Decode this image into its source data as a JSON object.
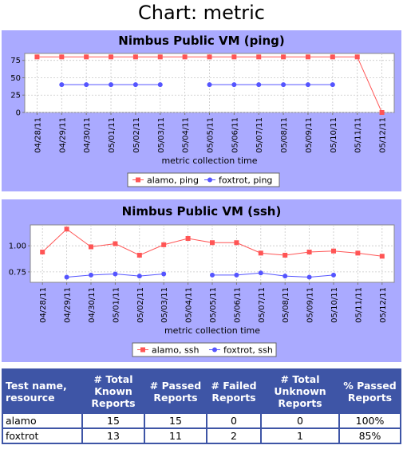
{
  "page": {
    "title": "Chart: metric"
  },
  "chart_data": [
    {
      "type": "line",
      "title": "Nimbus Public VM (ping)",
      "xlabel": "metric collection time",
      "ylabel": "",
      "categories": [
        "04/28/11",
        "04/29/11",
        "04/30/11",
        "05/01/11",
        "05/02/11",
        "05/03/11",
        "05/04/11",
        "05/05/11",
        "05/06/11",
        "05/07/11",
        "05/08/11",
        "05/09/11",
        "05/10/11",
        "05/11/11",
        "05/12/11"
      ],
      "ylim": [
        0,
        85
      ],
      "yticks": [
        0,
        25,
        50,
        75
      ],
      "ytick_labels": [
        "0",
        "25",
        "50",
        "75"
      ],
      "grid": true,
      "legend_position": "bottom",
      "series": [
        {
          "name": "alamo, ping",
          "color": "#ff5555",
          "marker": "square",
          "values": [
            80,
            80,
            80,
            80,
            80,
            80,
            80,
            80,
            80,
            80,
            80,
            80,
            80,
            80,
            0
          ]
        },
        {
          "name": "foxtrot, ping",
          "color": "#5555ff",
          "marker": "circle",
          "values": [
            null,
            40,
            40,
            40,
            40,
            40,
            null,
            40,
            40,
            40,
            40,
            40,
            40,
            null,
            null
          ]
        }
      ]
    },
    {
      "type": "line",
      "title": "Nimbus Public VM (ssh)",
      "xlabel": "metric collection time",
      "ylabel": "",
      "categories": [
        "04/28/11",
        "04/29/11",
        "04/30/11",
        "05/01/11",
        "05/02/11",
        "05/03/11",
        "05/04/11",
        "05/05/11",
        "05/06/11",
        "05/07/11",
        "05/08/11",
        "05/09/11",
        "05/10/11",
        "05/11/11",
        "05/12/11"
      ],
      "ylim": [
        0.65,
        1.2
      ],
      "yticks": [
        0.75,
        1.0
      ],
      "ytick_labels": [
        "0.75",
        "1.00"
      ],
      "grid": true,
      "legend_position": "bottom",
      "series": [
        {
          "name": "alamo, ssh",
          "color": "#ff5555",
          "marker": "square",
          "values": [
            0.94,
            1.16,
            0.99,
            1.02,
            0.91,
            1.01,
            1.07,
            1.03,
            1.03,
            0.93,
            0.91,
            0.94,
            0.95,
            0.93,
            0.9
          ]
        },
        {
          "name": "foxtrot, ssh",
          "color": "#5555ff",
          "marker": "circle",
          "values": [
            null,
            0.7,
            0.72,
            0.73,
            0.71,
            0.73,
            null,
            0.72,
            0.72,
            0.74,
            0.71,
            0.7,
            0.72,
            null,
            null
          ]
        }
      ]
    }
  ],
  "stats_table": {
    "headers": [
      "Test name, resource",
      "# Total Known Reports",
      "# Passed Reports",
      "# Failed Reports",
      "# Total Unknown Reports",
      "% Passed Reports"
    ],
    "rows": [
      [
        "alamo",
        "15",
        "15",
        "0",
        "0",
        "100%"
      ],
      [
        "foxtrot",
        "13",
        "11",
        "2",
        "1",
        "85%"
      ]
    ]
  }
}
